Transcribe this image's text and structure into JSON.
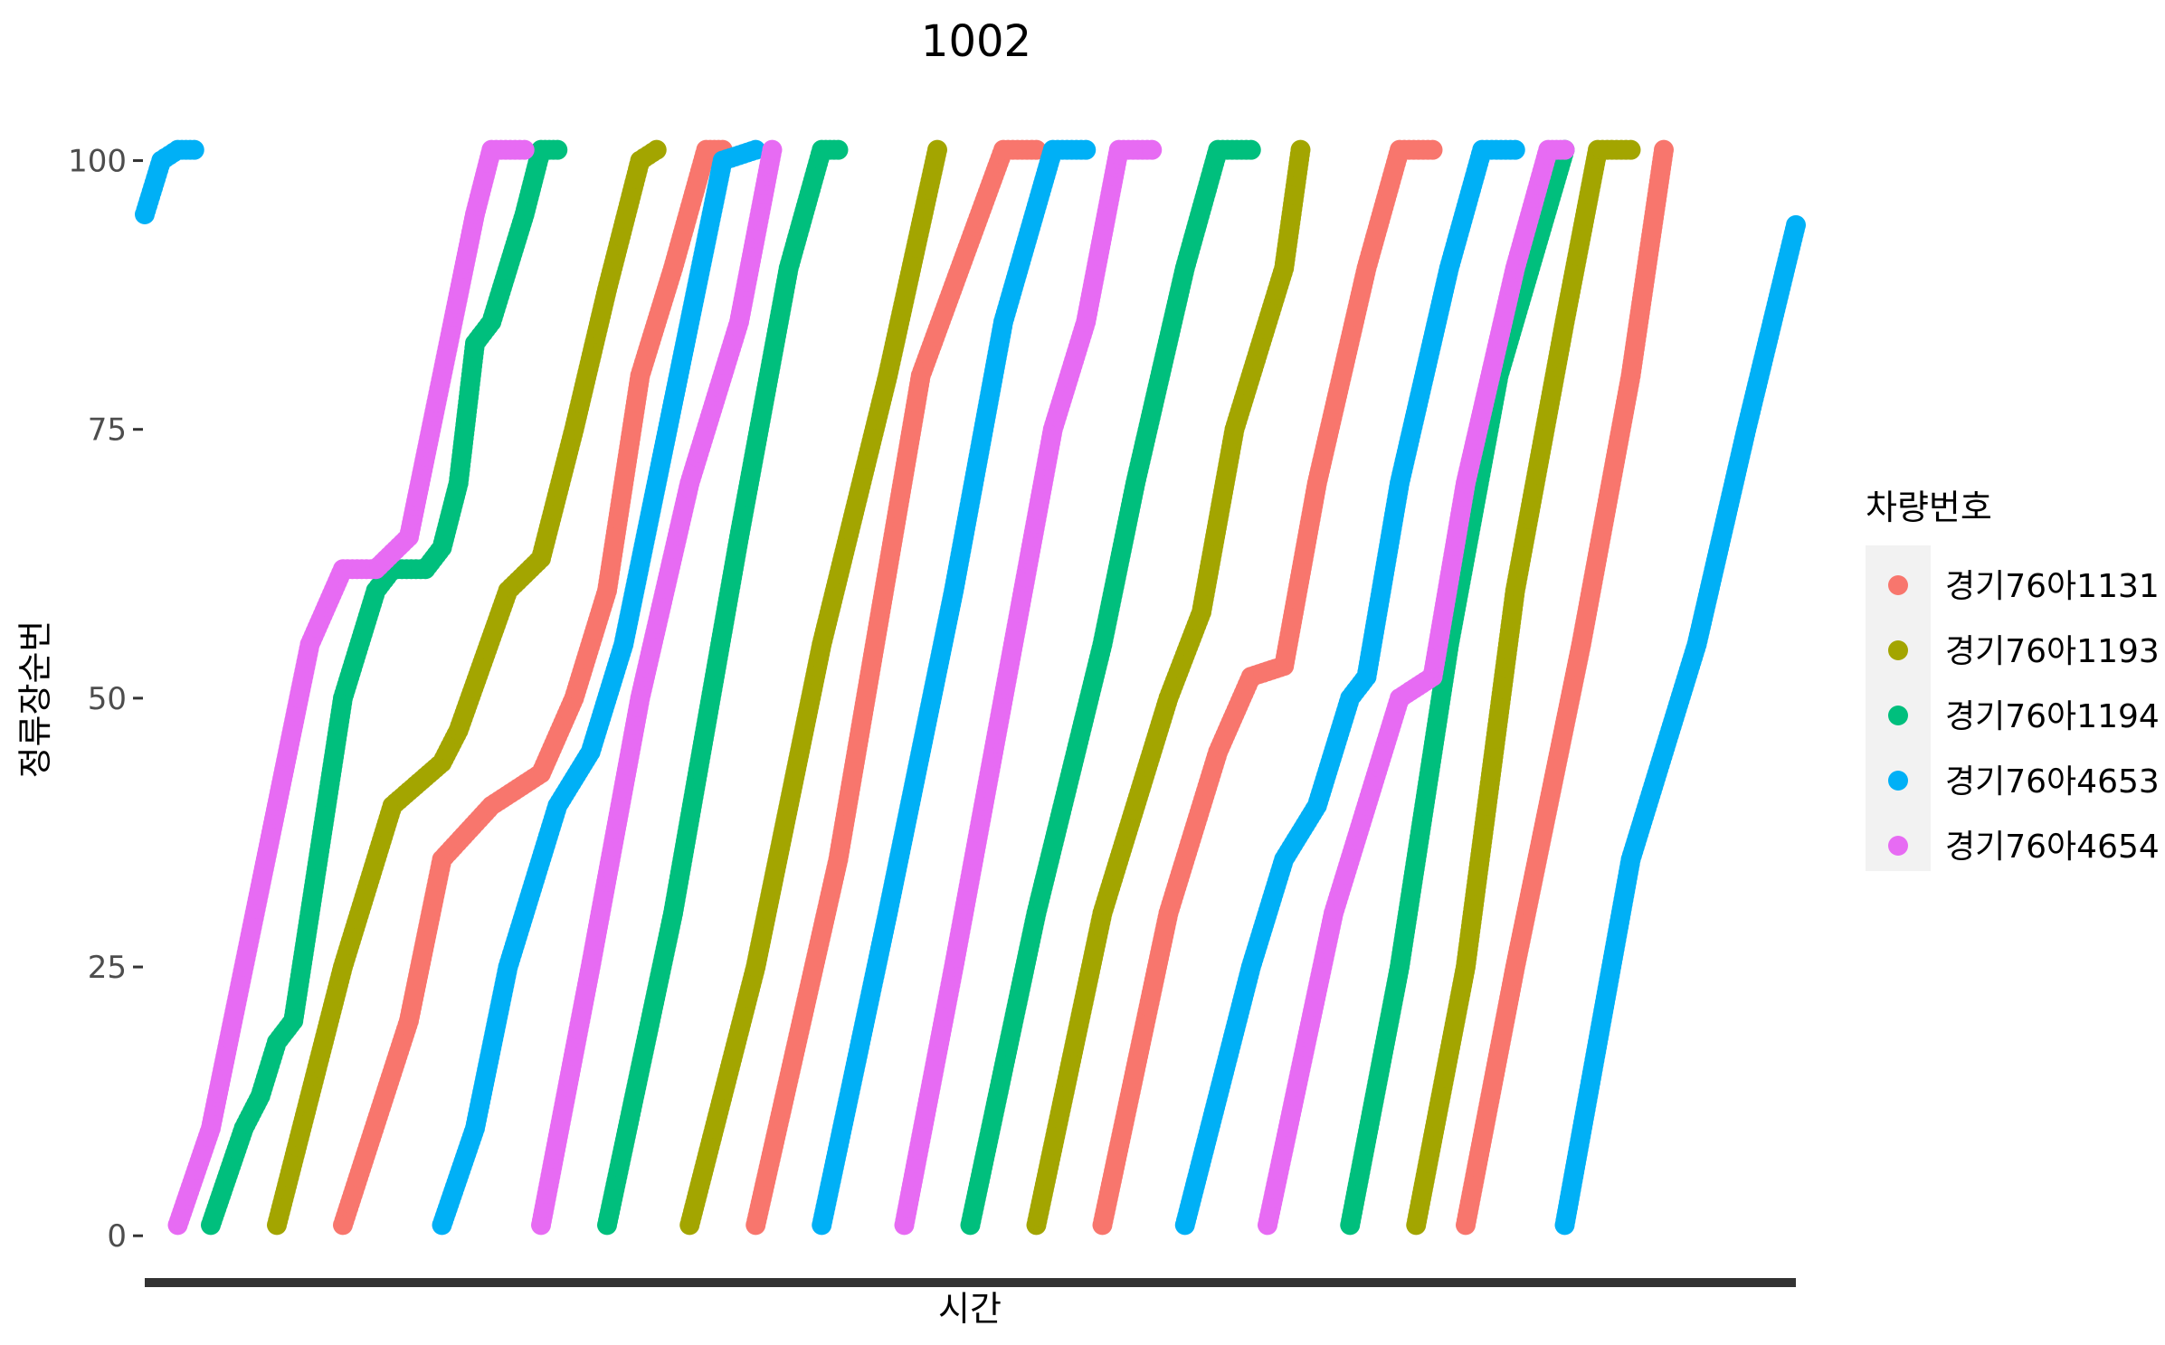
{
  "chart_data": {
    "type": "scatter",
    "title": "1002",
    "xlabel": "시간",
    "ylabel": "정류장순번",
    "ylim": [
      -2,
      104
    ],
    "xlim": [
      0,
      100
    ],
    "yticks": [
      0,
      25,
      50,
      75,
      100
    ],
    "x_tick_labels_visible": false,
    "grid": false,
    "legend": {
      "title": "차량번호",
      "placement": "right"
    },
    "series": [
      {
        "name": "경기76아1131",
        "color": "#F8766D",
        "trips": [
          [
            [
              12,
              1
            ],
            [
              16,
              20
            ],
            [
              18,
              35
            ],
            [
              21,
              40
            ],
            [
              24,
              43
            ],
            [
              26,
              50
            ],
            [
              28,
              60
            ],
            [
              30,
              80
            ],
            [
              32,
              90
            ],
            [
              34,
              101
            ],
            [
              35,
              101
            ]
          ],
          [
            [
              37,
              1
            ],
            [
              42,
              35
            ],
            [
              47,
              80
            ],
            [
              52,
              101
            ],
            [
              54,
              101
            ]
          ],
          [
            [
              58,
              1
            ],
            [
              62,
              30
            ],
            [
              65,
              45
            ],
            [
              67,
              52
            ],
            [
              69,
              53
            ],
            [
              71,
              70
            ],
            [
              74,
              90
            ],
            [
              76,
              101
            ],
            [
              78,
              101
            ]
          ],
          [
            [
              80,
              1
            ],
            [
              83,
              25
            ],
            [
              87,
              55
            ],
            [
              90,
              80
            ],
            [
              92,
              101
            ]
          ]
        ]
      },
      {
        "name": "경기76아1193",
        "color": "#A3A500",
        "trips": [
          [
            [
              8,
              1
            ],
            [
              12,
              25
            ],
            [
              15,
              40
            ],
            [
              18,
              44
            ],
            [
              19,
              47
            ],
            [
              22,
              60
            ],
            [
              24,
              63
            ],
            [
              26,
              75
            ],
            [
              28,
              88
            ],
            [
              30,
              100
            ],
            [
              31,
              101
            ]
          ],
          [
            [
              33,
              1
            ],
            [
              37,
              25
            ],
            [
              41,
              55
            ],
            [
              45,
              80
            ],
            [
              48,
              101
            ]
          ],
          [
            [
              54,
              1
            ],
            [
              58,
              30
            ],
            [
              62,
              50
            ],
            [
              64,
              58
            ],
            [
              66,
              75
            ],
            [
              69,
              90
            ],
            [
              70,
              101
            ]
          ],
          [
            [
              77,
              1
            ],
            [
              80,
              25
            ],
            [
              83,
              60
            ],
            [
              86,
              85
            ],
            [
              88,
              101
            ],
            [
              90,
              101
            ]
          ]
        ]
      },
      {
        "name": "경기76아1194",
        "color": "#00BF7D",
        "trips": [
          [
            [
              4,
              1
            ],
            [
              6,
              10
            ],
            [
              7,
              13
            ],
            [
              8,
              18
            ],
            [
              9,
              20
            ],
            [
              11,
              40
            ],
            [
              12,
              50
            ],
            [
              14,
              60
            ],
            [
              15,
              62
            ],
            [
              17,
              62
            ],
            [
              18,
              64
            ],
            [
              19,
              70
            ],
            [
              20,
              83
            ],
            [
              21,
              85
            ],
            [
              23,
              95
            ],
            [
              24,
              101
            ],
            [
              25,
              101
            ]
          ],
          [
            [
              28,
              1
            ],
            [
              32,
              30
            ],
            [
              36,
              65
            ],
            [
              39,
              90
            ],
            [
              41,
              101
            ],
            [
              42,
              101
            ]
          ],
          [
            [
              50,
              1
            ],
            [
              54,
              30
            ],
            [
              58,
              55
            ],
            [
              60,
              70
            ],
            [
              63,
              90
            ],
            [
              65,
              101
            ],
            [
              67,
              101
            ]
          ],
          [
            [
              73,
              1
            ],
            [
              76,
              25
            ],
            [
              79,
              55
            ],
            [
              82,
              80
            ],
            [
              86,
              101
            ]
          ]
        ]
      },
      {
        "name": "경기76아4653",
        "color": "#00B0F6",
        "trips": [
          [
            [
              0,
              95
            ],
            [
              1,
              100
            ],
            [
              2,
              101
            ],
            [
              3,
              101
            ]
          ],
          [
            [
              18,
              1
            ],
            [
              20,
              10
            ],
            [
              22,
              25
            ],
            [
              25,
              40
            ],
            [
              27,
              45
            ],
            [
              29,
              55
            ],
            [
              31,
              70
            ],
            [
              33,
              85
            ],
            [
              35,
              100
            ],
            [
              37,
              101
            ]
          ],
          [
            [
              41,
              1
            ],
            [
              45,
              30
            ],
            [
              49,
              60
            ],
            [
              52,
              85
            ],
            [
              55,
              101
            ],
            [
              57,
              101
            ]
          ],
          [
            [
              63,
              1
            ],
            [
              67,
              25
            ],
            [
              69,
              35
            ],
            [
              71,
              40
            ],
            [
              73,
              50
            ],
            [
              74,
              52
            ],
            [
              76,
              70
            ],
            [
              79,
              90
            ],
            [
              81,
              101
            ],
            [
              83,
              101
            ]
          ],
          [
            [
              86,
              1
            ],
            [
              90,
              35
            ],
            [
              94,
              55
            ],
            [
              97,
              75
            ],
            [
              100,
              94
            ]
          ]
        ]
      },
      {
        "name": "경기76아4654",
        "color": "#E76BF3",
        "trips": [
          [
            [
              2,
              1
            ],
            [
              4,
              10
            ],
            [
              6,
              25
            ],
            [
              8,
              40
            ],
            [
              10,
              55
            ],
            [
              12,
              62
            ],
            [
              14,
              62
            ],
            [
              16,
              65
            ],
            [
              18,
              80
            ],
            [
              20,
              95
            ],
            [
              21,
              101
            ],
            [
              23,
              101
            ]
          ],
          [
            [
              24,
              1
            ],
            [
              27,
              25
            ],
            [
              30,
              50
            ],
            [
              33,
              70
            ],
            [
              36,
              85
            ],
            [
              38,
              101
            ]
          ],
          [
            [
              46,
              1
            ],
            [
              49,
              25
            ],
            [
              52,
              50
            ],
            [
              55,
              75
            ],
            [
              57,
              85
            ],
            [
              59,
              101
            ],
            [
              61,
              101
            ]
          ],
          [
            [
              68,
              1
            ],
            [
              72,
              30
            ],
            [
              74,
              40
            ],
            [
              76,
              50
            ],
            [
              78,
              52
            ],
            [
              80,
              70
            ],
            [
              83,
              90
            ],
            [
              85,
              101
            ],
            [
              86,
              101
            ]
          ]
        ]
      }
    ]
  }
}
